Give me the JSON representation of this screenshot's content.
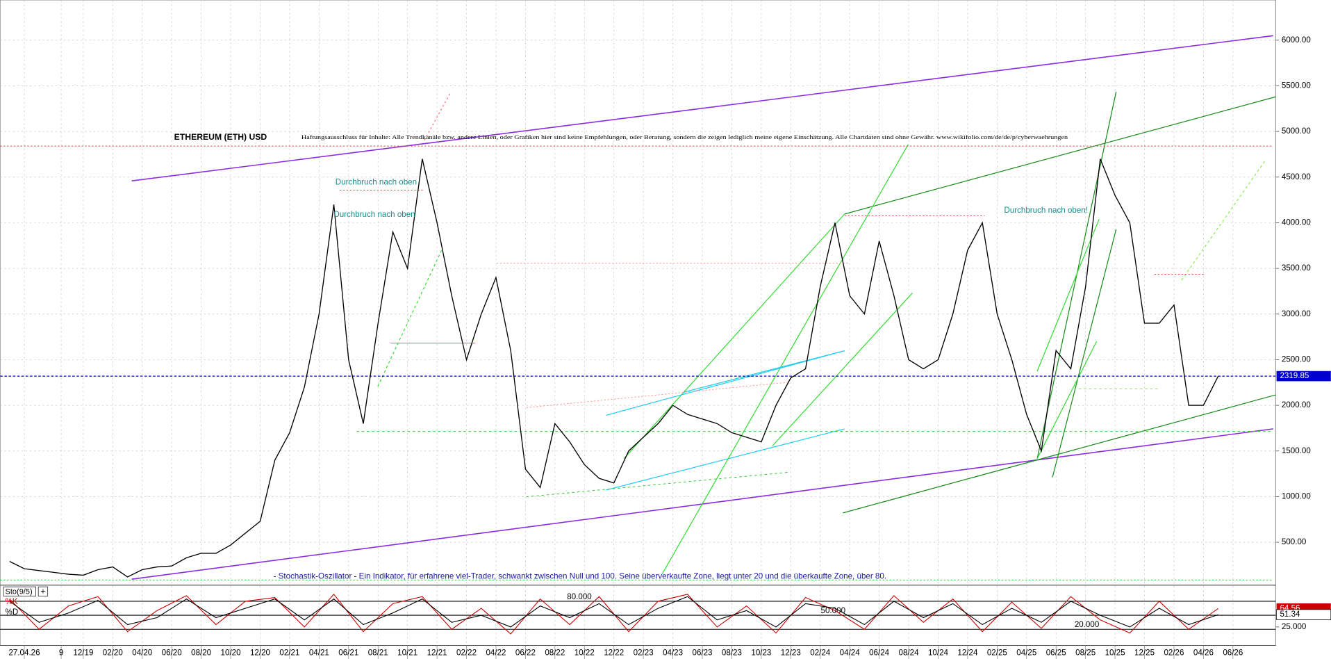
{
  "chart_data": [
    {
      "type": "line",
      "title": "ETHEREUM (ETH) USD",
      "subtitle": "Haftungsausschluss für Inhalte: Alle Trendkanäle bzw. andere Linien, oder Grafiken hier sind keine Empfehlungen, oder Beratung, sondern die zeigen lediglich meine eigene Einschätzung. Alle Chartdaten sind ohne Gewähr.  www.wikifolio.com/de/de/p/cyberwaehrungen",
      "annotations": [
        "Durchbruch nach oben",
        "Durchbruch nach oben",
        "Durchbruch nach oben!"
      ],
      "x": [
        -5,
        -4,
        -3,
        -2,
        -1,
        0,
        1,
        2,
        3,
        4,
        5,
        6,
        7,
        8,
        9,
        10,
        11,
        12,
        13,
        14,
        15,
        16,
        17,
        18,
        19,
        20,
        21,
        22,
        23,
        24,
        25,
        26,
        27,
        28,
        29,
        30,
        31,
        32,
        33,
        34,
        35,
        36,
        37,
        38,
        39,
        40,
        41,
        42,
        43,
        44,
        45,
        46,
        47,
        48,
        49,
        50,
        51,
        52,
        53,
        54,
        55,
        56,
        57,
        58,
        59,
        60,
        61,
        62,
        63,
        64,
        65,
        66,
        67,
        68,
        69,
        70,
        71,
        72,
        73,
        74,
        75,
        76,
        77
      ],
      "values": [
        290,
        210,
        190,
        170,
        150,
        140,
        200,
        230,
        120,
        200,
        230,
        240,
        330,
        380,
        380,
        470,
        600,
        730,
        1400,
        1700,
        2200,
        3000,
        4200,
        2500,
        1800,
        2900,
        3900,
        3500,
        4700,
        4000,
        3200,
        2500,
        3000,
        3400,
        2600,
        1300,
        1100,
        1800,
        1600,
        1350,
        1200,
        1150,
        1500,
        1650,
        1800,
        2000,
        1900,
        1850,
        1800,
        1700,
        1650,
        1600,
        2000,
        2300,
        2400,
        3300,
        4000,
        3200,
        3000,
        3800,
        3200,
        2500,
        2400,
        2500,
        3000,
        3700,
        4000,
        3000,
        2500,
        1900,
        1500,
        2600,
        2400,
        3300,
        4700,
        4300,
        4000,
        2900,
        2900,
        3100,
        2000,
        2000,
        2319.85
      ],
      "color": "#000000",
      "current_color": "#0000cc",
      "xlim": [
        -5.64,
        80.9
      ],
      "ylim": [
        40,
        6440
      ],
      "yticks": [
        {
          "value": 500,
          "label": "500.00"
        },
        {
          "value": 1000,
          "label": "1000.00"
        },
        {
          "value": 1500,
          "label": "1500.00"
        },
        {
          "value": 2000,
          "label": "2000.00"
        },
        {
          "value": 2500,
          "label": "2500.00"
        },
        {
          "value": 3000,
          "label": "3000.00"
        },
        {
          "value": 3500,
          "label": "3500.00"
        },
        {
          "value": 4000,
          "label": "4000.00"
        },
        {
          "value": 4500,
          "label": "4500.00"
        },
        {
          "value": 5000,
          "label": "5000.00"
        },
        {
          "value": 5500,
          "label": "5500.00"
        },
        {
          "value": 6000,
          "label": "6000.00"
        }
      ],
      "xticks": [
        {
          "value": -4,
          "label": "27.04.26"
        },
        {
          "value": -1.5,
          "label": "9"
        },
        {
          "value": 0,
          "label": "12/19"
        },
        {
          "value": 2,
          "label": "02/20"
        },
        {
          "value": 4,
          "label": "04/20"
        },
        {
          "value": 6,
          "label": "06/20"
        },
        {
          "value": 8,
          "label": "08/20"
        },
        {
          "value": 10,
          "label": "10/20"
        },
        {
          "value": 12,
          "label": "12/20"
        },
        {
          "value": 14,
          "label": "02/21"
        },
        {
          "value": 16,
          "label": "04/21"
        },
        {
          "value": 18,
          "label": "06/21"
        },
        {
          "value": 20,
          "label": "08/21"
        },
        {
          "value": 22,
          "label": "10/21"
        },
        {
          "value": 24,
          "label": "12/21"
        },
        {
          "value": 26,
          "label": "02/22"
        },
        {
          "value": 28,
          "label": "04/22"
        },
        {
          "value": 30,
          "label": "06/22"
        },
        {
          "value": 32,
          "label": "08/22"
        },
        {
          "value": 34,
          "label": "10/22"
        },
        {
          "value": 36,
          "label": "12/22"
        },
        {
          "value": 38,
          "label": "02/23"
        },
        {
          "value": 40,
          "label": "04/23"
        },
        {
          "value": 42,
          "label": "06/23"
        },
        {
          "value": 44,
          "label": "08/23"
        },
        {
          "value": 46,
          "label": "10/23"
        },
        {
          "value": 48,
          "label": "12/23"
        },
        {
          "value": 50,
          "label": "02/24"
        },
        {
          "value": 52,
          "label": "04/24"
        },
        {
          "value": 54,
          "label": "06/24"
        },
        {
          "value": 56,
          "label": "08/24"
        },
        {
          "value": 58,
          "label": "10/24"
        },
        {
          "value": 60,
          "label": "12/24"
        },
        {
          "value": 62,
          "label": "02/25"
        },
        {
          "value": 64,
          "label": "04/25"
        },
        {
          "value": 66,
          "label": "06/25"
        },
        {
          "value": 68,
          "label": "08/25"
        },
        {
          "value": 70,
          "label": "10/25"
        },
        {
          "value": 72,
          "label": "12/25"
        },
        {
          "value": 74,
          "label": "02/26"
        },
        {
          "value": 76,
          "label": "04/26"
        },
        {
          "value": 78,
          "label": "06/26"
        }
      ],
      "grid": true
    },
    {
      "type": "line",
      "title": "Sto(9/5)",
      "annotations": [
        "- Stochastik-Oszillator - Ein Indikator, für erfahrene viel-Trader, schwankt zwischen Null und 100. Seine überverkaufte Zone, liegt unter 20 und die überkaufte Zone, über 80."
      ],
      "x": [
        -5,
        -3,
        -1,
        1,
        3,
        5,
        7,
        9,
        11,
        13,
        15,
        17,
        19,
        21,
        23,
        25,
        27,
        29,
        31,
        33,
        35,
        37,
        39,
        41,
        43,
        45,
        47,
        49,
        51,
        53,
        55,
        57,
        59,
        61,
        63,
        65,
        67,
        69,
        71,
        73,
        75,
        77
      ],
      "series": [
        {
          "name": "%K",
          "color": "#cc0000",
          "values": [
            85,
            20,
            70,
            90,
            15,
            60,
            92,
            30,
            80,
            88,
            25,
            95,
            15,
            75,
            90,
            20,
            65,
            10,
            85,
            30,
            90,
            15,
            80,
            95,
            25,
            70,
            12,
            88,
            60,
            20,
            92,
            35,
            85,
            15,
            78,
            22,
            90,
            40,
            12,
            80,
            20,
            64.56
          ]
        },
        {
          "name": "%D",
          "color": "#000000",
          "values": [
            80,
            35,
            55,
            82,
            30,
            45,
            85,
            45,
            65,
            85,
            40,
            85,
            30,
            55,
            85,
            35,
            50,
            25,
            70,
            45,
            75,
            30,
            65,
            90,
            40,
            60,
            25,
            75,
            65,
            30,
            80,
            45,
            75,
            30,
            65,
            35,
            80,
            50,
            25,
            65,
            30,
            51.34
          ]
        }
      ],
      "ylim": [
        0,
        100
      ],
      "levels": [
        {
          "value": 80,
          "label": "80.000"
        },
        {
          "value": 50,
          "label": "50.000"
        },
        {
          "value": 20,
          "label": "20.000"
        }
      ],
      "yticks": [
        {
          "value": 25,
          "label": "25.000"
        }
      ]
    }
  ]
}
